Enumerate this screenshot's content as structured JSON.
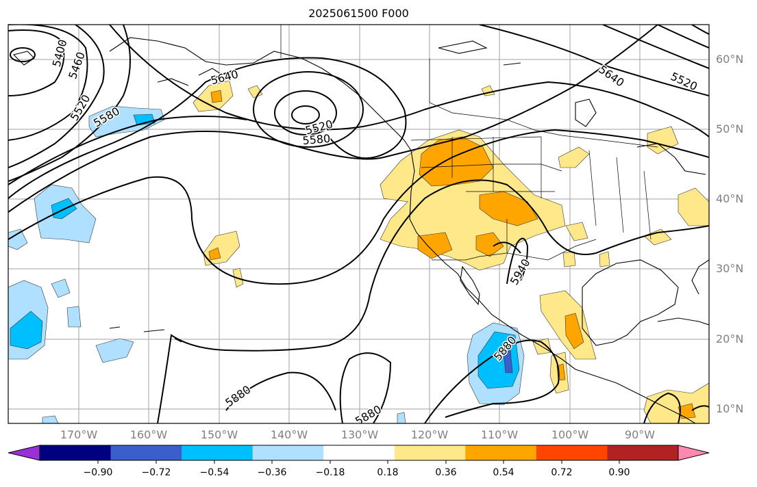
{
  "title": "2025061500 F000",
  "lon_labels": [
    "170°W",
    "160°W",
    "150°W",
    "140°W",
    "130°W",
    "120°W",
    "110°W",
    "100°W",
    "90°W"
  ],
  "lat_labels": [
    "60°N",
    "50°N",
    "40°N",
    "30°N",
    "20°N",
    "10°N"
  ],
  "contour_labels": [
    "5400",
    "5460",
    "5520",
    "5580",
    "5640",
    "5520",
    "5580",
    "5640",
    "5520",
    "5940",
    "5880",
    "5880",
    "5880"
  ],
  "colorbar": {
    "ticks": [
      "−0.90",
      "−0.72",
      "−0.54",
      "−0.36",
      "−0.18",
      "0.18",
      "0.36",
      "0.54",
      "0.72",
      "0.90"
    ],
    "colors": [
      "#9b30d8",
      "#000080",
      "#3a5fcd",
      "#00bfff",
      "#b0e0ff",
      "#ffffff",
      "#ffe88a",
      "#ffa500",
      "#ff4500",
      "#b22222",
      "#ff88b0"
    ]
  },
  "colors": {
    "frame": "#000000",
    "grid": "#a0a0a0",
    "label_gray": "#808080"
  }
}
